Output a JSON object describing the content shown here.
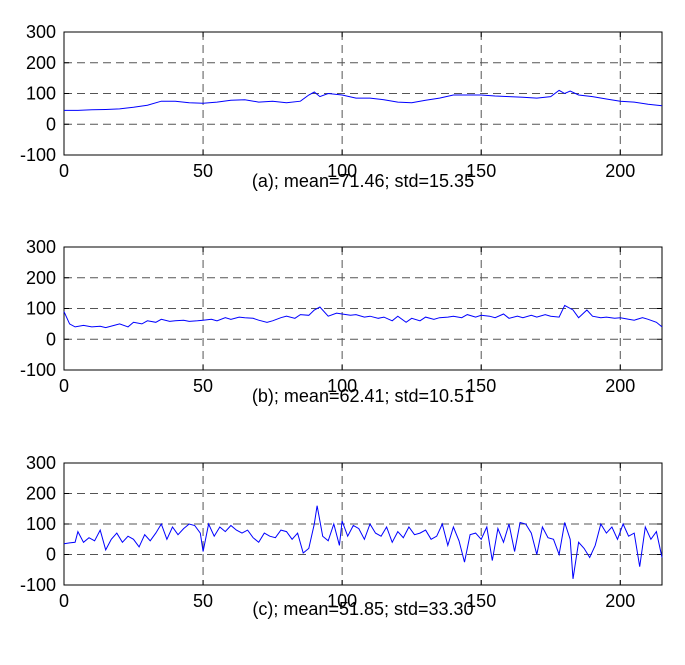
{
  "chart_data": [
    {
      "type": "line",
      "title": "(a); mean=71.46; std=15.35",
      "xlim": [
        0,
        215
      ],
      "ylim": [
        -100,
        300
      ],
      "xticks": [
        "0",
        "50",
        "100",
        "150",
        "200"
      ],
      "yticks": [
        "300",
        "200",
        "100",
        "0",
        "-100"
      ],
      "grid": true,
      "series": [
        {
          "color": "#0000ff",
          "x": [
            0,
            5,
            10,
            15,
            20,
            25,
            30,
            35,
            40,
            45,
            50,
            55,
            60,
            65,
            70,
            75,
            80,
            85,
            88,
            90,
            92,
            95,
            100,
            105,
            110,
            115,
            120,
            125,
            130,
            135,
            140,
            145,
            150,
            155,
            160,
            165,
            170,
            175,
            178,
            180,
            182,
            185,
            190,
            195,
            200,
            205,
            210,
            215
          ],
          "y": [
            45,
            45,
            47,
            48,
            50,
            55,
            62,
            75,
            75,
            70,
            68,
            72,
            78,
            80,
            72,
            75,
            70,
            75,
            95,
            105,
            90,
            100,
            95,
            85,
            85,
            80,
            72,
            70,
            78,
            85,
            95,
            95,
            95,
            92,
            90,
            88,
            85,
            90,
            110,
            100,
            108,
            95,
            90,
            82,
            75,
            72,
            65,
            60
          ]
        }
      ]
    },
    {
      "type": "line",
      "title": "(b); mean=62.41; std=10.51",
      "xlim": [
        0,
        215
      ],
      "ylim": [
        -100,
        300
      ],
      "xticks": [
        "0",
        "50",
        "100",
        "150",
        "200"
      ],
      "yticks": [
        "300",
        "200",
        "100",
        "0",
        "-100"
      ],
      "grid": true,
      "series": [
        {
          "color": "#0000ff",
          "x": [
            0,
            2,
            4,
            7,
            10,
            13,
            15,
            18,
            20,
            23,
            25,
            28,
            30,
            33,
            35,
            38,
            40,
            43,
            45,
            48,
            50,
            53,
            55,
            58,
            60,
            63,
            65,
            68,
            70,
            73,
            75,
            78,
            80,
            83,
            85,
            88,
            90,
            92,
            95,
            98,
            100,
            103,
            105,
            108,
            110,
            113,
            115,
            118,
            120,
            123,
            125,
            128,
            130,
            133,
            135,
            138,
            140,
            143,
            145,
            148,
            150,
            153,
            155,
            158,
            160,
            163,
            165,
            168,
            170,
            173,
            175,
            178,
            180,
            183,
            185,
            188,
            190,
            193,
            195,
            198,
            200,
            203,
            205,
            208,
            210,
            213,
            215
          ],
          "y": [
            90,
            50,
            40,
            45,
            40,
            42,
            38,
            45,
            50,
            40,
            55,
            50,
            60,
            55,
            65,
            58,
            60,
            62,
            58,
            60,
            62,
            65,
            60,
            70,
            65,
            72,
            70,
            68,
            62,
            55,
            60,
            70,
            75,
            68,
            80,
            78,
            95,
            105,
            75,
            85,
            82,
            78,
            80,
            72,
            75,
            68,
            72,
            60,
            75,
            55,
            68,
            60,
            72,
            65,
            70,
            72,
            75,
            70,
            80,
            72,
            78,
            75,
            70,
            82,
            68,
            75,
            70,
            78,
            72,
            80,
            75,
            72,
            110,
            95,
            70,
            95,
            75,
            70,
            72,
            68,
            70,
            65,
            62,
            70,
            65,
            55,
            40
          ]
        }
      ]
    },
    {
      "type": "line",
      "title": "(c); mean=51.85; std=33.30",
      "xlim": [
        0,
        215
      ],
      "ylim": [
        -100,
        300
      ],
      "xticks": [
        "0",
        "50",
        "100",
        "150",
        "200"
      ],
      "yticks": [
        "300",
        "200",
        "100",
        "0",
        "-100"
      ],
      "grid": true,
      "series": [
        {
          "color": "#0000ff",
          "x": [
            0,
            2,
            4,
            5,
            7,
            9,
            11,
            13,
            15,
            17,
            19,
            21,
            23,
            25,
            27,
            29,
            31,
            33,
            35,
            37,
            39,
            41,
            43,
            45,
            47,
            49,
            50,
            52,
            54,
            56,
            58,
            60,
            62,
            64,
            66,
            68,
            70,
            72,
            74,
            76,
            78,
            80,
            82,
            84,
            86,
            88,
            90,
            91,
            93,
            95,
            97,
            99,
            100,
            102,
            104,
            106,
            108,
            110,
            112,
            114,
            116,
            118,
            120,
            122,
            124,
            126,
            128,
            130,
            132,
            134,
            136,
            138,
            140,
            142,
            144,
            146,
            148,
            150,
            152,
            154,
            156,
            158,
            160,
            162,
            164,
            166,
            168,
            170,
            172,
            174,
            176,
            178,
            180,
            182,
            183,
            185,
            187,
            189,
            191,
            193,
            195,
            197,
            199,
            201,
            203,
            205,
            207,
            209,
            211,
            213,
            215
          ],
          "y": [
            35,
            38,
            40,
            75,
            40,
            55,
            45,
            80,
            15,
            50,
            70,
            40,
            60,
            50,
            25,
            65,
            45,
            70,
            100,
            50,
            90,
            65,
            85,
            100,
            95,
            70,
            10,
            100,
            60,
            90,
            75,
            95,
            80,
            70,
            80,
            55,
            40,
            70,
            60,
            55,
            80,
            75,
            50,
            70,
            5,
            20,
            100,
            160,
            60,
            45,
            100,
            30,
            110,
            60,
            95,
            85,
            50,
            100,
            70,
            60,
            90,
            40,
            75,
            55,
            90,
            65,
            70,
            80,
            50,
            60,
            100,
            30,
            90,
            45,
            -25,
            65,
            70,
            50,
            90,
            -20,
            85,
            40,
            100,
            10,
            105,
            100,
            70,
            0,
            90,
            55,
            50,
            0,
            105,
            50,
            -80,
            40,
            20,
            -10,
            30,
            100,
            70,
            90,
            50,
            100,
            60,
            70,
            -40,
            90,
            50,
            75,
            -10
          ]
        }
      ]
    }
  ]
}
